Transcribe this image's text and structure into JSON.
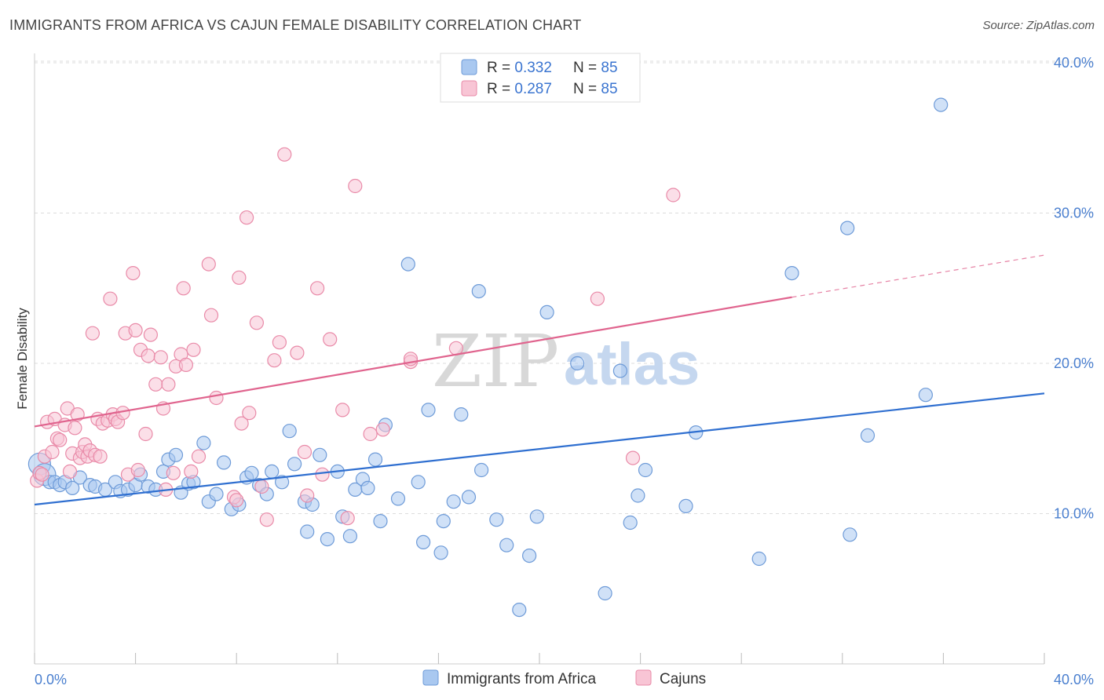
{
  "header": {
    "title": "IMMIGRANTS FROM AFRICA VS CAJUN FEMALE DISABILITY CORRELATION CHART",
    "source": "Source: ZipAtlas.com"
  },
  "legend": {
    "rows": [
      {
        "r_label": "R = ",
        "r_value": "0.332",
        "n_label": "N = ",
        "n_value": "85",
        "color": "#a9c8f0",
        "border": "#6e9bd8"
      },
      {
        "r_label": "R = ",
        "r_value": "0.287",
        "n_label": "N = ",
        "n_value": "85",
        "color": "#f8c5d5",
        "border": "#e98aa8"
      }
    ]
  },
  "bottom_legend": [
    {
      "label": "Immigrants from Africa",
      "color": "#a9c8f0",
      "border": "#6e9bd8"
    },
    {
      "label": "Cajuns",
      "color": "#f8c5d5",
      "border": "#e98aa8"
    }
  ],
  "watermark": {
    "part1": "ZIP",
    "part2": "atlas"
  },
  "chart_data": {
    "type": "scatter",
    "title": "IMMIGRANTS FROM AFRICA VS CAJUN FEMALE DISABILITY CORRELATION CHART",
    "xlabel": "",
    "ylabel": "Female Disability",
    "xlim": [
      0,
      40
    ],
    "ylim": [
      0,
      40
    ],
    "x_ticks": [
      "0.0%",
      "40.0%"
    ],
    "y_ticks": [
      {
        "value": 10,
        "label": "10.0%"
      },
      {
        "value": 20,
        "label": "20.0%"
      },
      {
        "value": 30,
        "label": "30.0%"
      },
      {
        "value": 40,
        "label": "40.0%"
      }
    ],
    "grid": true,
    "series": [
      {
        "name": "Immigrants from Africa",
        "color": "#6e9bd8",
        "fill": "#a9c8f0",
        "trend": {
          "x0": 0,
          "y0": 10.6,
          "x1": 40,
          "y1": 18.0,
          "color": "#2f6fd0"
        },
        "points": [
          [
            0.2,
            13.3
          ],
          [
            0.4,
            12.6
          ],
          [
            0.6,
            12.1
          ],
          [
            0.8,
            12.1
          ],
          [
            1.0,
            11.9
          ],
          [
            1.2,
            12.1
          ],
          [
            1.5,
            11.7
          ],
          [
            1.8,
            12.4
          ],
          [
            2.2,
            11.9
          ],
          [
            2.4,
            11.8
          ],
          [
            2.8,
            11.6
          ],
          [
            3.2,
            12.1
          ],
          [
            3.4,
            11.5
          ],
          [
            3.7,
            11.6
          ],
          [
            4.0,
            11.9
          ],
          [
            4.2,
            12.6
          ],
          [
            4.5,
            11.8
          ],
          [
            4.8,
            11.6
          ],
          [
            5.1,
            12.8
          ],
          [
            5.3,
            13.6
          ],
          [
            5.6,
            13.9
          ],
          [
            5.8,
            11.4
          ],
          [
            6.1,
            12.0
          ],
          [
            6.3,
            12.1
          ],
          [
            6.7,
            14.7
          ],
          [
            6.9,
            10.8
          ],
          [
            7.2,
            11.3
          ],
          [
            7.5,
            13.4
          ],
          [
            7.8,
            10.3
          ],
          [
            8.1,
            10.6
          ],
          [
            8.4,
            12.4
          ],
          [
            8.6,
            12.7
          ],
          [
            8.9,
            11.9
          ],
          [
            9.2,
            11.3
          ],
          [
            9.4,
            12.8
          ],
          [
            9.8,
            12.1
          ],
          [
            10.1,
            15.5
          ],
          [
            10.3,
            13.3
          ],
          [
            10.7,
            10.8
          ],
          [
            10.8,
            8.8
          ],
          [
            11.0,
            10.6
          ],
          [
            11.3,
            13.9
          ],
          [
            11.6,
            8.3
          ],
          [
            12.0,
            12.8
          ],
          [
            12.2,
            9.8
          ],
          [
            12.5,
            8.5
          ],
          [
            12.7,
            11.6
          ],
          [
            13.0,
            12.3
          ],
          [
            13.2,
            11.7
          ],
          [
            13.5,
            13.6
          ],
          [
            13.7,
            9.5
          ],
          [
            13.9,
            15.9
          ],
          [
            14.4,
            11.0
          ],
          [
            14.8,
            26.6
          ],
          [
            15.2,
            12.1
          ],
          [
            15.4,
            8.1
          ],
          [
            15.6,
            16.9
          ],
          [
            16.1,
            7.4
          ],
          [
            16.2,
            9.5
          ],
          [
            16.6,
            10.8
          ],
          [
            16.9,
            16.6
          ],
          [
            17.2,
            11.1
          ],
          [
            17.6,
            24.8
          ],
          [
            17.7,
            12.9
          ],
          [
            18.3,
            9.6
          ],
          [
            18.7,
            7.9
          ],
          [
            19.2,
            3.6
          ],
          [
            19.6,
            7.2
          ],
          [
            19.9,
            9.8
          ],
          [
            20.3,
            23.4
          ],
          [
            21.5,
            20.0
          ],
          [
            22.6,
            4.7
          ],
          [
            23.2,
            19.5
          ],
          [
            23.6,
            9.4
          ],
          [
            23.9,
            11.2
          ],
          [
            24.2,
            12.9
          ],
          [
            25.8,
            10.5
          ],
          [
            26.2,
            15.4
          ],
          [
            28.7,
            7.0
          ],
          [
            30.0,
            26.0
          ],
          [
            32.2,
            29.0
          ],
          [
            32.3,
            8.6
          ],
          [
            33.0,
            15.2
          ],
          [
            35.3,
            17.9
          ],
          [
            35.9,
            37.2
          ]
        ]
      },
      {
        "name": "Cajuns",
        "color": "#e98aa8",
        "fill": "#f8c5d5",
        "trend": {
          "x0": 0,
          "y0": 15.8,
          "x1": 30.0,
          "y1": 24.4,
          "x2": 40,
          "y2": 27.2,
          "color": "#e0648e"
        },
        "points": [
          [
            0.1,
            12.2
          ],
          [
            0.2,
            12.7
          ],
          [
            0.3,
            12.6
          ],
          [
            0.4,
            13.8
          ],
          [
            0.5,
            16.1
          ],
          [
            0.7,
            14.1
          ],
          [
            0.8,
            16.3
          ],
          [
            0.9,
            15.0
          ],
          [
            1.0,
            14.9
          ],
          [
            1.2,
            15.9
          ],
          [
            1.3,
            17.0
          ],
          [
            1.4,
            12.8
          ],
          [
            1.5,
            14.0
          ],
          [
            1.6,
            15.7
          ],
          [
            1.7,
            16.6
          ],
          [
            1.8,
            13.7
          ],
          [
            1.9,
            14.1
          ],
          [
            2.0,
            14.6
          ],
          [
            2.1,
            13.8
          ],
          [
            2.2,
            14.2
          ],
          [
            2.3,
            22.0
          ],
          [
            2.4,
            13.9
          ],
          [
            2.5,
            16.3
          ],
          [
            2.6,
            13.8
          ],
          [
            2.7,
            16.0
          ],
          [
            2.9,
            16.2
          ],
          [
            3.0,
            24.3
          ],
          [
            3.1,
            16.6
          ],
          [
            3.2,
            16.3
          ],
          [
            3.3,
            16.1
          ],
          [
            3.5,
            16.7
          ],
          [
            3.6,
            22.0
          ],
          [
            3.7,
            12.6
          ],
          [
            3.9,
            26.0
          ],
          [
            4.0,
            22.2
          ],
          [
            4.1,
            12.9
          ],
          [
            4.2,
            20.9
          ],
          [
            4.4,
            15.3
          ],
          [
            4.5,
            20.5
          ],
          [
            4.6,
            21.9
          ],
          [
            4.8,
            18.6
          ],
          [
            5.0,
            20.4
          ],
          [
            5.1,
            17.0
          ],
          [
            5.2,
            11.6
          ],
          [
            5.3,
            18.6
          ],
          [
            5.5,
            12.7
          ],
          [
            5.6,
            19.8
          ],
          [
            5.8,
            20.6
          ],
          [
            5.9,
            25.0
          ],
          [
            6.0,
            19.9
          ],
          [
            6.2,
            12.8
          ],
          [
            6.3,
            20.9
          ],
          [
            6.5,
            13.8
          ],
          [
            6.9,
            26.6
          ],
          [
            7.0,
            23.2
          ],
          [
            7.2,
            17.7
          ],
          [
            7.9,
            11.1
          ],
          [
            8.1,
            25.7
          ],
          [
            8.2,
            16.0
          ],
          [
            8.4,
            29.7
          ],
          [
            8.5,
            16.7
          ],
          [
            8.8,
            22.7
          ],
          [
            9.0,
            11.8
          ],
          [
            9.2,
            9.6
          ],
          [
            9.5,
            20.2
          ],
          [
            9.7,
            21.4
          ],
          [
            9.9,
            33.9
          ],
          [
            10.4,
            20.7
          ],
          [
            10.7,
            14.1
          ],
          [
            10.8,
            11.2
          ],
          [
            11.2,
            25.0
          ],
          [
            11.4,
            12.6
          ],
          [
            11.7,
            21.6
          ],
          [
            12.2,
            16.9
          ],
          [
            12.4,
            9.7
          ],
          [
            12.7,
            31.8
          ],
          [
            13.3,
            15.3
          ],
          [
            13.8,
            15.6
          ],
          [
            14.9,
            20.1
          ],
          [
            14.9,
            20.3
          ],
          [
            16.7,
            21.0
          ],
          [
            22.3,
            24.3
          ],
          [
            23.7,
            13.7
          ],
          [
            25.3,
            31.2
          ],
          [
            8.0,
            10.9
          ]
        ]
      }
    ]
  }
}
